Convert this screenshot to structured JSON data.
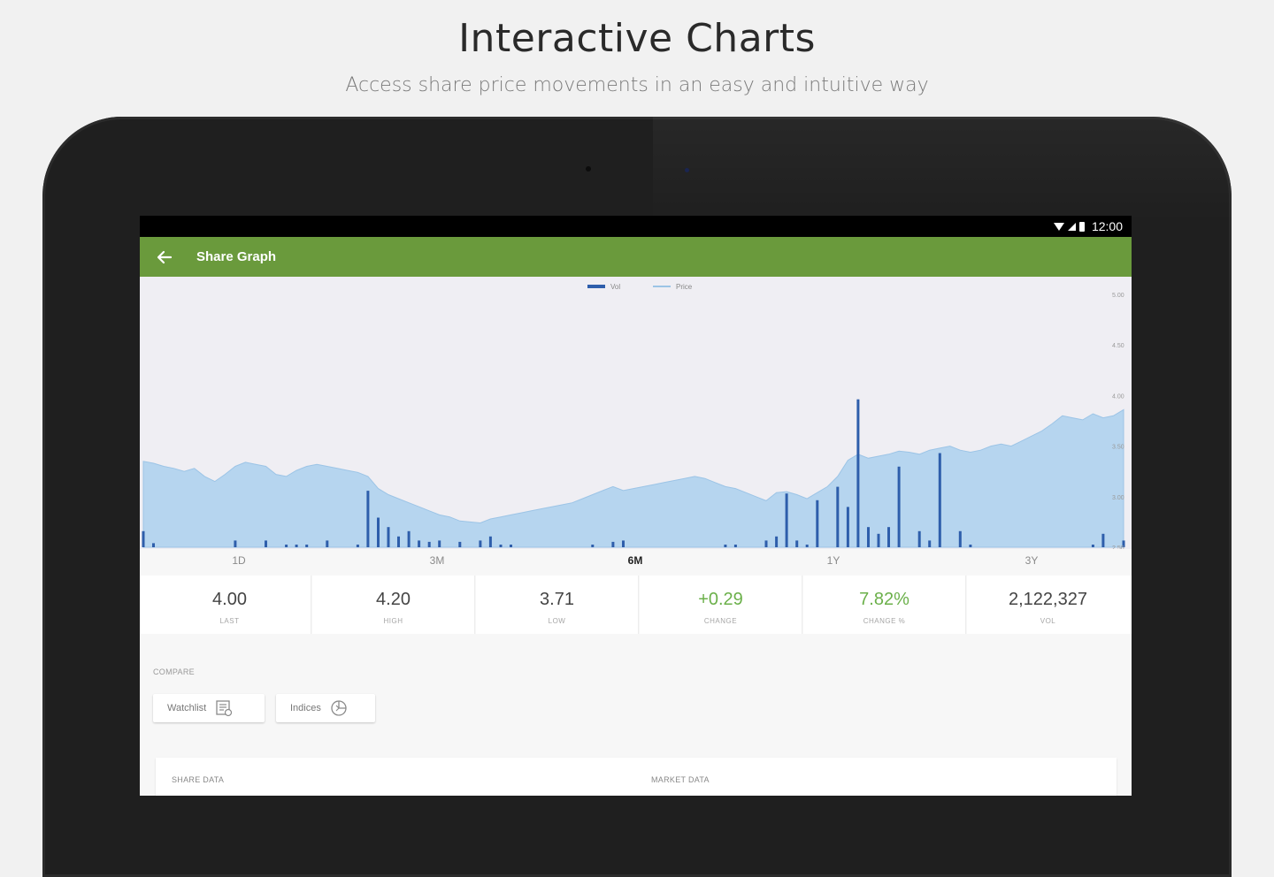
{
  "promo": {
    "title": "Interactive Charts",
    "subtitle": "Access share price movements in an easy and intuitive way"
  },
  "status_bar": {
    "time": "12:00"
  },
  "app_bar": {
    "title": "Share Graph"
  },
  "chart_data": {
    "type": "bar",
    "legend": {
      "placement": "top-center",
      "entries": [
        "Vol",
        "Price"
      ]
    },
    "series": [
      {
        "name": "Price",
        "kind": "area",
        "color": "#b6d5ef",
        "values": [
          3.35,
          3.33,
          3.3,
          3.28,
          3.25,
          3.28,
          3.2,
          3.15,
          3.22,
          3.3,
          3.34,
          3.32,
          3.3,
          3.22,
          3.2,
          3.26,
          3.3,
          3.32,
          3.3,
          3.28,
          3.26,
          3.24,
          3.2,
          3.08,
          3.02,
          2.98,
          2.94,
          2.9,
          2.86,
          2.82,
          2.8,
          2.76,
          2.75,
          2.74,
          2.78,
          2.8,
          2.82,
          2.84,
          2.86,
          2.88,
          2.9,
          2.92,
          2.94,
          2.98,
          3.02,
          3.06,
          3.1,
          3.06,
          3.08,
          3.1,
          3.12,
          3.14,
          3.16,
          3.18,
          3.2,
          3.18,
          3.14,
          3.1,
          3.08,
          3.04,
          3.0,
          2.96,
          3.04,
          3.05,
          3.02,
          2.98,
          3.04,
          3.1,
          3.2,
          3.36,
          3.42,
          3.38,
          3.4,
          3.42,
          3.45,
          3.44,
          3.42,
          3.46,
          3.48,
          3.5,
          3.46,
          3.44,
          3.46,
          3.5,
          3.52,
          3.5,
          3.55,
          3.6,
          3.65,
          3.72,
          3.8,
          3.78,
          3.76,
          3.82,
          3.78,
          3.8,
          3.86
        ]
      },
      {
        "name": "Vol",
        "kind": "bar",
        "color": "#2e5eab",
        "values": [
          0.12,
          0.03,
          0,
          0,
          0,
          0,
          0,
          0,
          0,
          0.05,
          0,
          0,
          0.05,
          0,
          0.02,
          0.02,
          0.02,
          0,
          0.05,
          0,
          0,
          0.02,
          0.42,
          0.22,
          0.15,
          0.08,
          0.12,
          0.05,
          0.04,
          0.05,
          0,
          0.04,
          0,
          0.05,
          0.08,
          0.02,
          0.02,
          0,
          0,
          0,
          0,
          0,
          0,
          0,
          0.02,
          0,
          0.04,
          0.05,
          0,
          0,
          0,
          0,
          0,
          0,
          0,
          0,
          0,
          0.02,
          0.02,
          0,
          0,
          0.05,
          0.08,
          0.4,
          0.05,
          0.02,
          0.35,
          0,
          0.45,
          0.3,
          1.1,
          0.15,
          0.1,
          0.15,
          0.6,
          0,
          0.12,
          0.05,
          0.7,
          0,
          0.12,
          0.02,
          0,
          0,
          0,
          0,
          0,
          0,
          0,
          0,
          0,
          0,
          0,
          0.02,
          0.1,
          0,
          0.05
        ]
      }
    ],
    "y_ticks": [
      "5.00",
      "4.50",
      "4.00",
      "3.50",
      "3.00",
      "2.50"
    ],
    "ylim": [
      2.5,
      5.0
    ]
  },
  "ranges": [
    {
      "label": "1D",
      "active": false
    },
    {
      "label": "3M",
      "active": false
    },
    {
      "label": "6M",
      "active": true
    },
    {
      "label": "1Y",
      "active": false
    },
    {
      "label": "3Y",
      "active": false
    }
  ],
  "stats": {
    "last": {
      "value": "4.00",
      "label": "LAST"
    },
    "high": {
      "value": "4.20",
      "label": "HIGH"
    },
    "low": {
      "value": "3.71",
      "label": "LOW"
    },
    "change": {
      "value": "+0.29",
      "label": "CHANGE"
    },
    "change_pct": {
      "value": "7.82%",
      "label": "CHANGE %"
    },
    "vol": {
      "value": "2,122,327",
      "label": "VOL"
    }
  },
  "compare": {
    "label": "COMPARE",
    "watchlist_label": "Watchlist",
    "indices_label": "Indices"
  },
  "data_card": {
    "share_data_label": "SHARE DATA",
    "market_data_label": "MARKET DATA"
  },
  "colors": {
    "accent": "#6a9a3c",
    "positive": "#6bb04a",
    "volume": "#2e5eab",
    "price": "#b6d5ef"
  }
}
